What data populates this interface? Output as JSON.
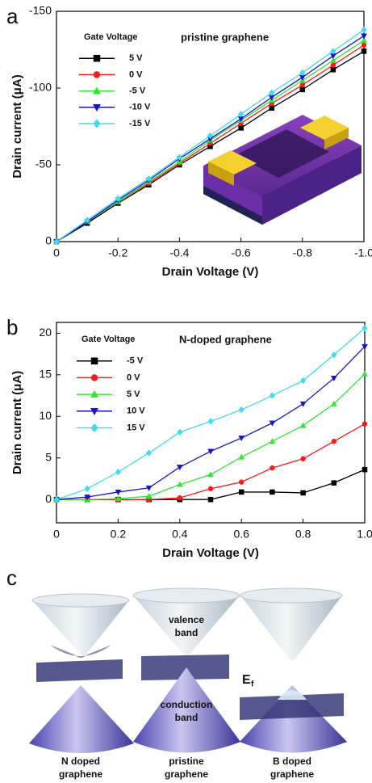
{
  "chart_data": [
    {
      "type": "line",
      "panel_label": "a",
      "xlabel": "Drain Voltage (V)",
      "ylabel": "Drain current (μA)",
      "legend_title": "Gate Voltage",
      "annotation": "pristine graphene",
      "legend": "upper left",
      "grid": false,
      "x": [
        0,
        -0.1,
        -0.2,
        -0.3,
        -0.4,
        -0.5,
        -0.6,
        -0.7,
        -0.8,
        -0.9,
        -1.0
      ],
      "xlim": [
        0,
        -1.0
      ],
      "ylim": [
        0,
        -150
      ],
      "xticks": [
        0,
        -0.2,
        -0.4,
        -0.6,
        -0.8,
        {
          "value": -1.0,
          "label": "-1.0"
        }
      ],
      "yticks": [
        0,
        -50,
        -100,
        -150
      ],
      "series": [
        {
          "name": "5 V",
          "color": "#000000",
          "marker": "square",
          "values": [
            0,
            -12,
            -25,
            -37,
            -50,
            -62,
            -74,
            -87,
            -99,
            -112,
            -124
          ]
        },
        {
          "name": "0 V",
          "color": "#ff1a1a",
          "marker": "circle",
          "values": [
            0,
            -13,
            -26,
            -38,
            -51,
            -64,
            -77,
            -90,
            -102,
            -115,
            -128
          ]
        },
        {
          "name": "-5 V",
          "color": "#2ee82e",
          "marker": "triangle-up",
          "values": [
            0,
            -13,
            -26,
            -39,
            -52,
            -66,
            -79,
            -92,
            -105,
            -118,
            -131
          ]
        },
        {
          "name": "-10 V",
          "color": "#1414d0",
          "marker": "triangle-down",
          "values": [
            0,
            -13,
            -27,
            -40,
            -54,
            -67,
            -80,
            -94,
            -107,
            -121,
            -134
          ]
        },
        {
          "name": "-15 V",
          "color": "#3fdcf0",
          "marker": "diamond",
          "values": [
            0,
            -14,
            -28,
            -41,
            -55,
            -69,
            -83,
            -97,
            -110,
            -124,
            -138
          ]
        }
      ]
    },
    {
      "type": "line",
      "panel_label": "b",
      "xlabel": "Drain Voltage (V)",
      "ylabel": "Drain current (μA)",
      "legend_title": "Gate Voltage",
      "annotation": "N-doped graphene",
      "legend": "upper left",
      "grid": false,
      "x": [
        0,
        0.1,
        0.2,
        0.3,
        0.4,
        0.5,
        0.6,
        0.7,
        0.8,
        0.9,
        1.0
      ],
      "xlim": [
        0,
        1.0
      ],
      "ylim": [
        -2.8,
        21.3
      ],
      "xticks": [
        0,
        0.2,
        0.4,
        0.6,
        0.8,
        {
          "value": 1.0,
          "label": "1.0"
        }
      ],
      "yticks": [
        0,
        5,
        10,
        15,
        20
      ],
      "series": [
        {
          "name": "-5 V",
          "color": "#000000",
          "marker": "square",
          "values": [
            0,
            0,
            0,
            0,
            0,
            0,
            0.9,
            0.9,
            0.8,
            2.0,
            3.6
          ]
        },
        {
          "name": "0 V",
          "color": "#ff1a1a",
          "marker": "circle",
          "values": [
            0,
            0,
            0,
            0,
            0.2,
            1.3,
            2.1,
            3.8,
            4.9,
            7.0,
            9.1
          ]
        },
        {
          "name": "5 V",
          "color": "#2ee82e",
          "marker": "triangle-up",
          "values": [
            0,
            0,
            0.1,
            0.4,
            1.8,
            3.0,
            5.1,
            7.0,
            8.9,
            11.5,
            15.1
          ]
        },
        {
          "name": "10 V",
          "color": "#1414d0",
          "marker": "triangle-down",
          "values": [
            0,
            0.3,
            0.9,
            1.4,
            3.9,
            5.8,
            7.4,
            9.2,
            11.5,
            14.6,
            18.4
          ]
        },
        {
          "name": "15 V",
          "color": "#3fdcf0",
          "marker": "diamond",
          "values": [
            0,
            1.3,
            3.3,
            5.6,
            8.1,
            9.4,
            10.8,
            12.5,
            14.3,
            17.4,
            20.6
          ]
        }
      ]
    }
  ],
  "panel_c": {
    "panel_label": "c",
    "valence": [
      "valence",
      "band"
    ],
    "conduction": [
      "conduction",
      "band"
    ],
    "fermi_symbol": "E",
    "fermi_subscript": "f",
    "captions": [
      [
        "N doped",
        "graphene"
      ],
      [
        "pristine",
        "graphene"
      ],
      [
        "B doped",
        "graphene"
      ]
    ]
  }
}
